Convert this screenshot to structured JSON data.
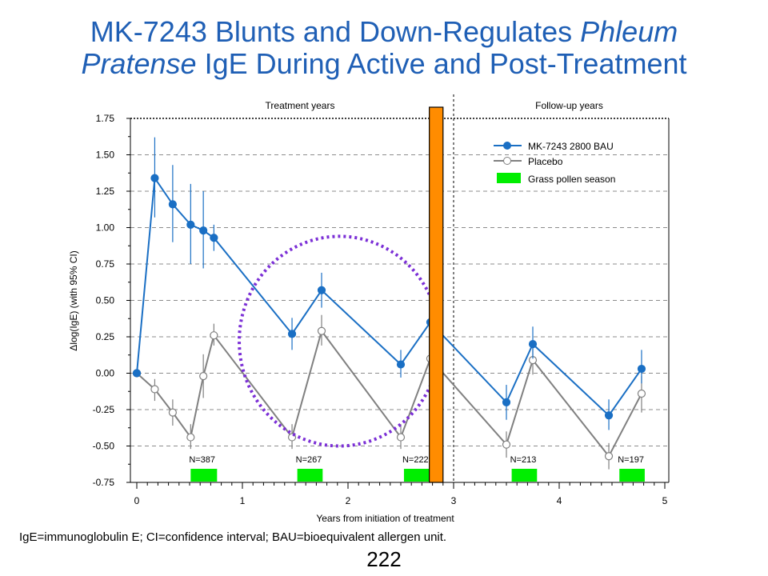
{
  "slide": {
    "title_part1": "MK-7243 Blunts and Down-Regulates ",
    "title_italic1": "Phleum",
    "title_italic2": "Pratense",
    "title_part2": " IgE During Active and Post-Treatment",
    "footnote": "IgE=immunoglobulin E; CI=confidence interval; BAU=bioequivalent allergen unit.",
    "page_number": "222"
  },
  "colors": {
    "treatment": "#1a6fc4",
    "placebo": "#808080",
    "pollen": "#00ee00",
    "bar": "#ff8c00",
    "ellipse": "#7b2fd6",
    "title": "#1f5fb5"
  },
  "chart_data": {
    "type": "line",
    "title": "",
    "xlabel": "Years from initiation of treatment",
    "ylabel": "Δlog(IgE) (with 95% CI)",
    "xlim": [
      0,
      5
    ],
    "ylim": [
      -0.75,
      1.75
    ],
    "x_ticks": [
      "0",
      "1",
      "2",
      "3",
      "4",
      "5"
    ],
    "y_ticks": [
      "1.75",
      "1.50",
      "1.25",
      "1.00",
      "0.75",
      "0.50",
      "0.25",
      "0.00",
      "-0.25",
      "-0.50",
      "-0.75"
    ],
    "y_tick_values": [
      1.75,
      1.5,
      1.25,
      1.0,
      0.75,
      0.5,
      0.25,
      0.0,
      -0.25,
      -0.5,
      -0.75
    ],
    "grid": "horizontal dashed",
    "region_labels": [
      "Treatment years",
      "Follow-up years"
    ],
    "region_divider_x": 3.0,
    "series": [
      {
        "name": "MK-7243 2800 BAU",
        "x": [
          0,
          0.17,
          0.34,
          0.51,
          0.63,
          0.73,
          1.47,
          1.75,
          2.5,
          2.78,
          3.5,
          3.75,
          4.47,
          4.78
        ],
        "y": [
          0.0,
          1.34,
          1.16,
          1.02,
          0.98,
          0.93,
          0.27,
          0.57,
          0.06,
          0.35,
          -0.2,
          0.2,
          -0.29,
          0.03
        ],
        "ci_low": [
          0.0,
          1.07,
          0.9,
          0.75,
          0.72,
          0.84,
          0.16,
          0.45,
          -0.03,
          0.24,
          -0.32,
          0.1,
          -0.39,
          -0.07
        ],
        "ci_high": [
          0.0,
          1.62,
          1.43,
          1.3,
          1.25,
          1.02,
          0.38,
          0.69,
          0.16,
          0.46,
          -0.08,
          0.32,
          -0.18,
          0.16
        ]
      },
      {
        "name": "Placebo",
        "x": [
          0,
          0.17,
          0.34,
          0.51,
          0.63,
          0.73,
          1.47,
          1.75,
          2.5,
          2.78,
          3.5,
          3.75,
          4.47,
          4.78
        ],
        "y": [
          0.0,
          -0.11,
          -0.27,
          -0.44,
          -0.02,
          0.26,
          -0.44,
          0.29,
          -0.44,
          0.1,
          -0.49,
          0.09,
          -0.57,
          -0.14
        ],
        "ci_low": [
          0.0,
          -0.19,
          -0.36,
          -0.52,
          -0.17,
          0.19,
          -0.52,
          0.19,
          -0.52,
          0.0,
          -0.58,
          -0.01,
          -0.66,
          -0.27
        ],
        "ci_high": [
          0.0,
          -0.04,
          -0.18,
          -0.35,
          0.13,
          0.34,
          -0.35,
          0.4,
          -0.35,
          0.2,
          -0.4,
          0.19,
          -0.48,
          -0.02
        ]
      }
    ],
    "legend": {
      "placement": "top-right",
      "entries": [
        "MK-7243 2800 BAU",
        "Placebo",
        "Grass pollen season"
      ]
    },
    "pollen_seasons": [
      {
        "x_start": 0.51,
        "x_end": 0.76,
        "n_label": "N=387"
      },
      {
        "x_start": 1.52,
        "x_end": 1.76,
        "n_label": "N=267"
      },
      {
        "x_start": 2.53,
        "x_end": 2.77,
        "n_label": "N=222"
      },
      {
        "x_start": 3.55,
        "x_end": 3.79,
        "n_label": "N=213"
      },
      {
        "x_start": 4.57,
        "x_end": 4.81,
        "n_label": "N=197"
      }
    ],
    "highlight_bar": {
      "x_start": 2.77,
      "x_end": 2.9
    },
    "highlight_ellipse": {
      "cx": 1.92,
      "cy": 0.22,
      "rx": 0.95,
      "ry": 0.72
    }
  }
}
